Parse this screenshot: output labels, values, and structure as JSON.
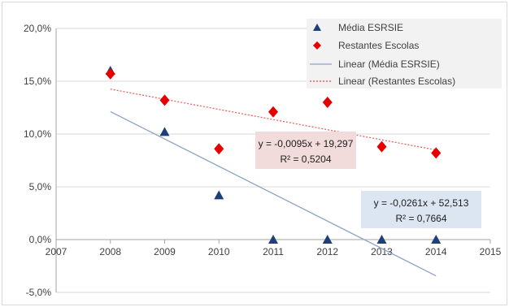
{
  "chart_data": {
    "type": "scatter",
    "xlim": [
      2007,
      2015
    ],
    "ylim": [
      -5,
      20
    ],
    "x_ticks": [
      2007,
      2008,
      2009,
      2010,
      2011,
      2012,
      2013,
      2014,
      2015
    ],
    "y_ticks": [
      -5,
      0,
      5,
      10,
      15,
      20
    ],
    "x_tick_labels": [
      "2007",
      "2008",
      "2009",
      "2010",
      "2011",
      "2012",
      "2013",
      "2014",
      "2015"
    ],
    "y_tick_labels": [
      "-5,0%",
      "0,0%",
      "5,0%",
      "10,0%",
      "15,0%",
      "20,0%"
    ],
    "y_unit": "%",
    "grid": "horizontal",
    "legend_position": "top-right",
    "series": [
      {
        "name": "Média ESRSIE",
        "marker": "triangle",
        "color": "#1f3f7a",
        "points": [
          {
            "x": 2008,
            "y": 16.0
          },
          {
            "x": 2009,
            "y": 10.2
          },
          {
            "x": 2010,
            "y": 4.2
          },
          {
            "x": 2011,
            "y": 0.0
          },
          {
            "x": 2012,
            "y": 0.0
          },
          {
            "x": 2013,
            "y": 0.0
          },
          {
            "x": 2014,
            "y": 0.0
          }
        ]
      },
      {
        "name": "Restantes Escolas",
        "marker": "diamond",
        "color": "#e60000",
        "points": [
          {
            "x": 2008,
            "y": 15.7
          },
          {
            "x": 2009,
            "y": 13.2
          },
          {
            "x": 2010,
            "y": 8.6
          },
          {
            "x": 2011,
            "y": 12.1
          },
          {
            "x": 2012,
            "y": 13.0
          },
          {
            "x": 2013,
            "y": 8.8
          },
          {
            "x": 2014,
            "y": 8.2
          }
        ]
      }
    ],
    "trendlines": [
      {
        "name": "Linear (Média ESRSIE)",
        "color": "#8ea3c9",
        "style": "solid",
        "slope": -0.0261,
        "intercept": 52.513,
        "x_range": [
          2008,
          2014
        ],
        "equation": "y = -0,0261x + 52,513",
        "r2": "R² = 0,7664",
        "label_bg": "#dce6f2"
      },
      {
        "name": "Linear (Restantes Escolas)",
        "color": "#f06060",
        "style": "dotted",
        "slope": -0.0095,
        "intercept": 19.297,
        "x_range": [
          2008,
          2014
        ],
        "equation": "y = -0,0095x + 19,297",
        "r2": "R² = 0,5204",
        "label_bg": "#f2dcdb"
      }
    ]
  },
  "colors": {
    "grid": "#d9d9d9",
    "axis": "#a6a6a6",
    "legend_bg": "#f2f2f2"
  }
}
